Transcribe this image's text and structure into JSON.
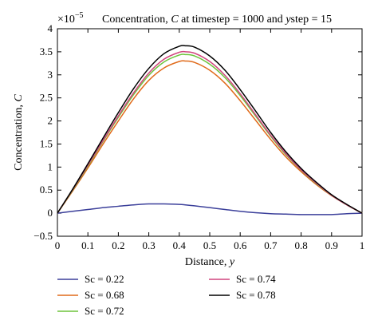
{
  "chart_data": {
    "type": "line",
    "title": "Concentration, C at timestep = 1000 and ystep = 15",
    "title_parts": {
      "prefix": "Concentration, ",
      "var_c": "C",
      "middle": " at timestep = 1000 and ",
      "var_y": "y",
      "suffix": "step = 15"
    },
    "scale_multiplier": "×10",
    "scale_exponent": "−5",
    "xlabel": "Distance, y",
    "xlabel_parts": {
      "text": "Distance, ",
      "var": "y"
    },
    "ylabel": "Concentration, C",
    "ylabel_parts": {
      "text": "Concentration, ",
      "var": "C"
    },
    "xlim": [
      0,
      1
    ],
    "ylim": [
      -0.5,
      4
    ],
    "xticks": [
      0,
      0.1,
      0.2,
      0.3,
      0.4,
      0.5,
      0.6,
      0.7,
      0.8,
      0.9,
      1
    ],
    "xtick_labels": [
      "0",
      "0.1",
      "0.2",
      "0.3",
      "0.4",
      "0.5",
      "0.6",
      "0.7",
      "0.8",
      "0.9",
      "1"
    ],
    "yticks": [
      -0.5,
      0,
      0.5,
      1,
      1.5,
      2,
      2.5,
      3,
      3.5,
      4
    ],
    "ytick_labels": [
      "−0.5",
      "0",
      "0.5",
      "1",
      "1.5",
      "2",
      "2.5",
      "3",
      "3.5",
      "4"
    ],
    "grid": false,
    "legend_position": "bottom",
    "x": [
      0,
      0.05,
      0.1,
      0.15,
      0.2,
      0.25,
      0.3,
      0.35,
      0.4,
      0.42,
      0.45,
      0.5,
      0.55,
      0.6,
      0.65,
      0.7,
      0.75,
      0.8,
      0.85,
      0.9,
      0.95,
      1
    ],
    "series": [
      {
        "name": "Sc = 0.22",
        "color": "#3b3f9a",
        "values": [
          0,
          0.04,
          0.08,
          0.12,
          0.15,
          0.18,
          0.2,
          0.2,
          0.19,
          0.18,
          0.16,
          0.12,
          0.08,
          0.04,
          0.01,
          -0.01,
          -0.02,
          -0.03,
          -0.03,
          -0.03,
          -0.01,
          0
        ]
      },
      {
        "name": "Sc = 0.68",
        "color": "#e06a1a",
        "values": [
          0,
          0.48,
          0.98,
          1.5,
          2.0,
          2.48,
          2.88,
          3.15,
          3.29,
          3.3,
          3.27,
          3.1,
          2.82,
          2.44,
          2.02,
          1.6,
          1.22,
          0.9,
          0.62,
          0.38,
          0.18,
          0
        ]
      },
      {
        "name": "Sc = 0.72",
        "color": "#6ec43c",
        "values": [
          0,
          0.5,
          1.02,
          1.56,
          2.08,
          2.57,
          2.99,
          3.28,
          3.43,
          3.44,
          3.41,
          3.23,
          2.94,
          2.55,
          2.11,
          1.67,
          1.27,
          0.93,
          0.64,
          0.39,
          0.18,
          0
        ]
      },
      {
        "name": "Sc = 0.74",
        "color": "#d1457e",
        "values": [
          0,
          0.51,
          1.04,
          1.58,
          2.11,
          2.61,
          3.04,
          3.34,
          3.49,
          3.5,
          3.47,
          3.29,
          2.99,
          2.59,
          2.14,
          1.69,
          1.29,
          0.94,
          0.65,
          0.39,
          0.18,
          0
        ]
      },
      {
        "name": "Sc = 0.78",
        "color": "#000000",
        "values": [
          0,
          0.52,
          1.07,
          1.63,
          2.18,
          2.7,
          3.14,
          3.46,
          3.62,
          3.63,
          3.6,
          3.41,
          3.1,
          2.68,
          2.22,
          1.75,
          1.33,
          0.97,
          0.67,
          0.4,
          0.19,
          0
        ]
      }
    ]
  }
}
